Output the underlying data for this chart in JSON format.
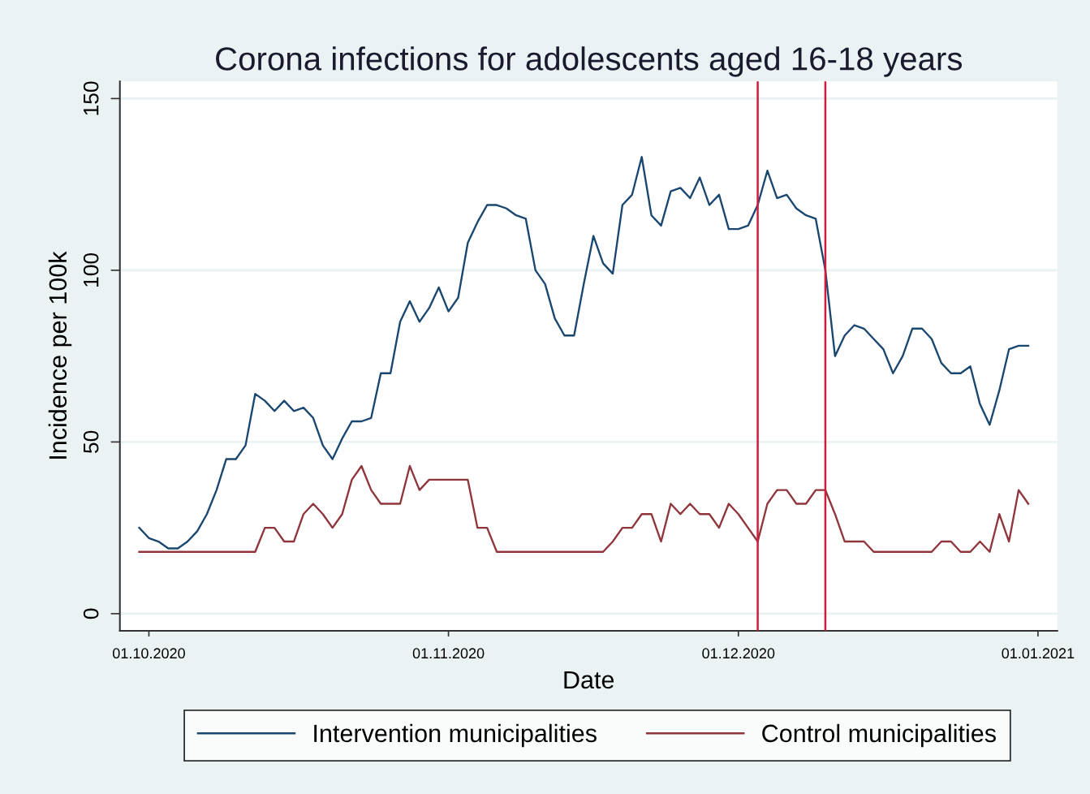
{
  "chart_data": {
    "type": "line",
    "title": "Corona infections for adolescents aged 16-18 years",
    "xlabel": "Date",
    "ylabel": "Incidence per 100k",
    "x": [
      "2020-09-30",
      "2020-10-01",
      "2020-10-02",
      "2020-10-03",
      "2020-10-04",
      "2020-10-05",
      "2020-10-06",
      "2020-10-07",
      "2020-10-08",
      "2020-10-09",
      "2020-10-10",
      "2020-10-11",
      "2020-10-12",
      "2020-10-13",
      "2020-10-14",
      "2020-10-15",
      "2020-10-16",
      "2020-10-17",
      "2020-10-18",
      "2020-10-19",
      "2020-10-20",
      "2020-10-21",
      "2020-10-22",
      "2020-10-23",
      "2020-10-24",
      "2020-10-25",
      "2020-10-26",
      "2020-10-27",
      "2020-10-28",
      "2020-10-29",
      "2020-10-30",
      "2020-10-31",
      "2020-11-01",
      "2020-11-02",
      "2020-11-03",
      "2020-11-04",
      "2020-11-05",
      "2020-11-06",
      "2020-11-07",
      "2020-11-08",
      "2020-11-09",
      "2020-11-10",
      "2020-11-11",
      "2020-11-12",
      "2020-11-13",
      "2020-11-14",
      "2020-11-15",
      "2020-11-16",
      "2020-11-17",
      "2020-11-18",
      "2020-11-19",
      "2020-11-20",
      "2020-11-21",
      "2020-11-22",
      "2020-11-23",
      "2020-11-24",
      "2020-11-25",
      "2020-11-26",
      "2020-11-27",
      "2020-11-28",
      "2020-11-29",
      "2020-11-30",
      "2020-12-01",
      "2020-12-02",
      "2020-12-03",
      "2020-12-04",
      "2020-12-05",
      "2020-12-06",
      "2020-12-07",
      "2020-12-08",
      "2020-12-09",
      "2020-12-10",
      "2020-12-11",
      "2020-12-12",
      "2020-12-13",
      "2020-12-14",
      "2020-12-15",
      "2020-12-16",
      "2020-12-17",
      "2020-12-18",
      "2020-12-19",
      "2020-12-20",
      "2020-12-21",
      "2020-12-22",
      "2020-12-23",
      "2020-12-24",
      "2020-12-25",
      "2020-12-26",
      "2020-12-27",
      "2020-12-28",
      "2020-12-29",
      "2020-12-30",
      "2020-12-31"
    ],
    "series": [
      {
        "name": "Intervention municipalities",
        "color": "#1a476f",
        "values": [
          25,
          22,
          21,
          19,
          19,
          21,
          24,
          29,
          36,
          45,
          45,
          49,
          64,
          62,
          59,
          62,
          59,
          60,
          57,
          49,
          45,
          51,
          56,
          56,
          57,
          70,
          70,
          85,
          91,
          85,
          89,
          95,
          88,
          92,
          108,
          114,
          119,
          119,
          118,
          116,
          115,
          100,
          96,
          86,
          81,
          81,
          96,
          110,
          102,
          99,
          119,
          122,
          133,
          116,
          113,
          123,
          124,
          121,
          127,
          119,
          122,
          112,
          112,
          113,
          119,
          129,
          121,
          122,
          118,
          116,
          115,
          100,
          75,
          81,
          84,
          83,
          80,
          77,
          70,
          75,
          83,
          83,
          80,
          73,
          70,
          70,
          72,
          61,
          55,
          65,
          77,
          78,
          78
        ]
      },
      {
        "name": "Control municipalities",
        "color": "#90353b",
        "values": [
          18,
          18,
          18,
          18,
          18,
          18,
          18,
          18,
          18,
          18,
          18,
          18,
          18,
          25,
          25,
          21,
          21,
          29,
          32,
          29,
          25,
          29,
          39,
          43,
          36,
          32,
          32,
          32,
          43,
          36,
          39,
          39,
          39,
          39,
          39,
          25,
          25,
          18,
          18,
          18,
          18,
          18,
          18,
          18,
          18,
          18,
          18,
          18,
          18,
          21,
          25,
          25,
          29,
          29,
          21,
          32,
          29,
          32,
          29,
          29,
          25,
          32,
          29,
          25,
          21,
          32,
          36,
          36,
          32,
          32,
          36,
          36,
          29,
          21,
          21,
          21,
          18,
          18,
          18,
          18,
          18,
          18,
          18,
          21,
          21,
          18,
          18,
          21,
          18,
          29,
          21,
          36,
          32
        ]
      }
    ],
    "xlim": [
      "2020-09-28",
      "2021-01-03"
    ],
    "xticks": [
      {
        "value": "2020-10-01",
        "label": "01.10.2020"
      },
      {
        "value": "2020-11-01",
        "label": "01.11.2020"
      },
      {
        "value": "2020-12-01",
        "label": "01.12.2020"
      },
      {
        "value": "2021-01-01",
        "label": "01.01.2021"
      }
    ],
    "ylim": [
      -5,
      155
    ],
    "yticks": [
      0,
      50,
      100,
      150
    ],
    "ref_lines": [
      {
        "axis": "x",
        "value": "2020-12-03",
        "color": "#d01c3c"
      },
      {
        "axis": "x",
        "value": "2020-12-10",
        "color": "#d01c3c"
      }
    ],
    "grid": "y",
    "legend": "bottom"
  }
}
